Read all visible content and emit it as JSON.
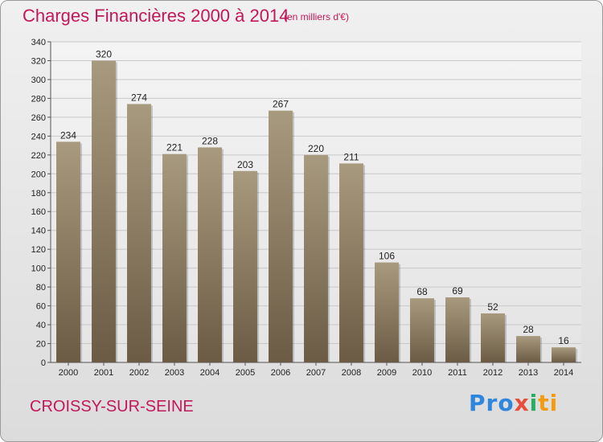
{
  "chart_data": {
    "type": "bar",
    "title": "Charges Financières 2000 à 2014",
    "subtitle": "(en milliers d'€)",
    "categories": [
      "2000",
      "2001",
      "2002",
      "2003",
      "2004",
      "2005",
      "2006",
      "2007",
      "2008",
      "2009",
      "2010",
      "2011",
      "2012",
      "2013",
      "2014"
    ],
    "values": [
      234,
      320,
      274,
      221,
      228,
      203,
      267,
      220,
      211,
      106,
      68,
      69,
      52,
      28,
      16
    ],
    "xlabel": "",
    "ylabel": "",
    "ylim": [
      0,
      340
    ],
    "yticks": [
      "0",
      "20",
      "40",
      "60",
      "80",
      "100",
      "120",
      "140",
      "160",
      "180",
      "200",
      "220",
      "240",
      "260",
      "280",
      "300",
      "320",
      "340"
    ],
    "grid": true,
    "legend": "none",
    "colors": {
      "bar_top": "#a89a7e",
      "bar_bottom": "#6b5b45",
      "accent": "#c2185b"
    }
  },
  "footer": {
    "city": "CROISSY-SUR-SEINE",
    "logo": {
      "p1": "Pro",
      "p2": "x",
      "p3": "i",
      "p4": "ti"
    }
  }
}
